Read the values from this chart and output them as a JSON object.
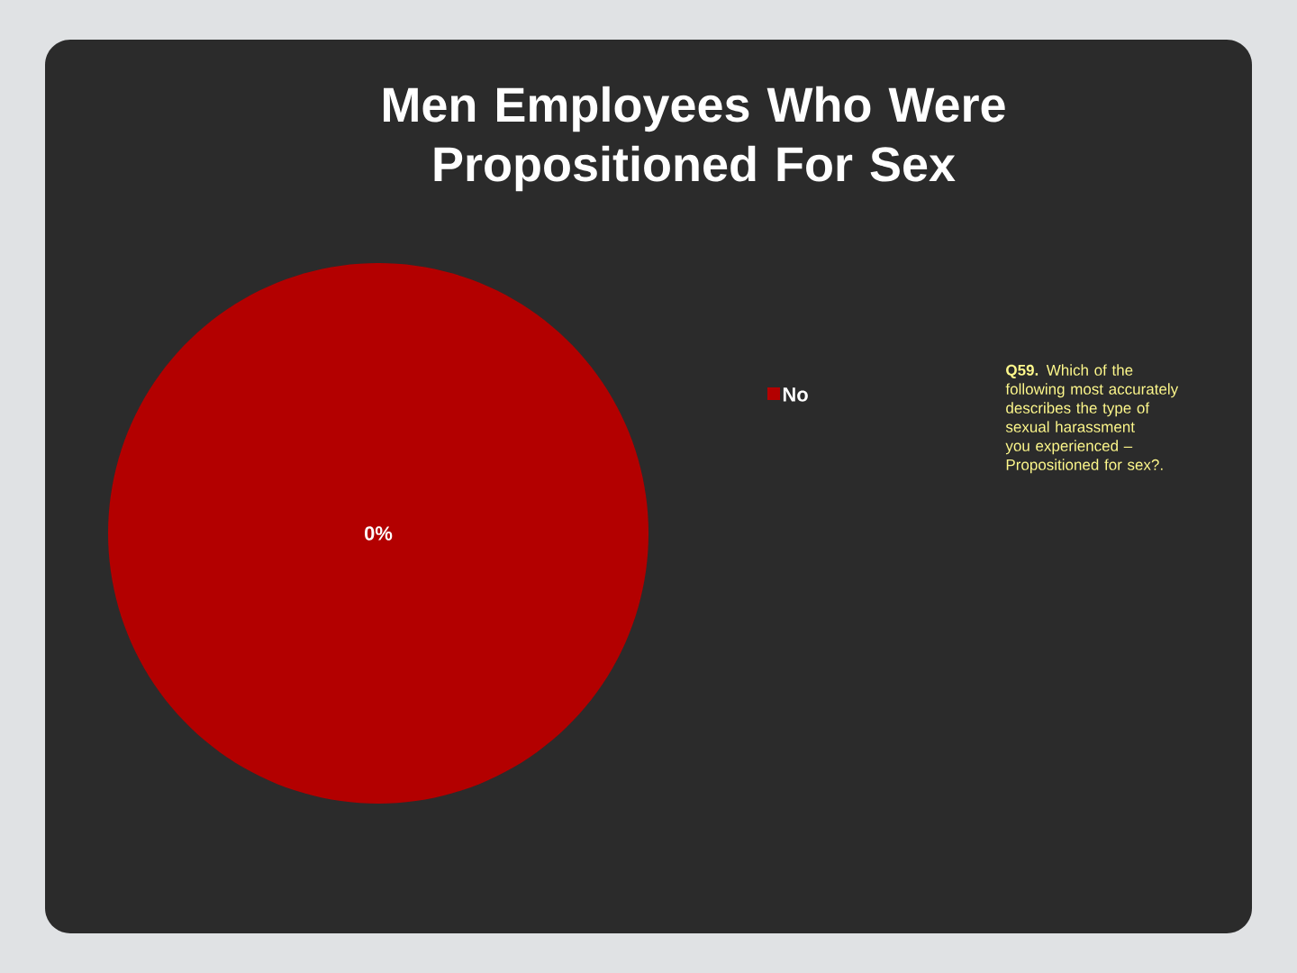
{
  "chart_data": {
    "type": "pie",
    "title": "Men Employees Who Were Propositioned For Sex",
    "categories": [
      "No"
    ],
    "values": [
      100
    ],
    "colors": [
      "#b30000"
    ],
    "legend": "right",
    "annotations": [
      "0%",
      "**Q59.** Which of the following most accurately describes the type of sexual harassment you experienced – Propositioned for sex?."
    ]
  }
}
